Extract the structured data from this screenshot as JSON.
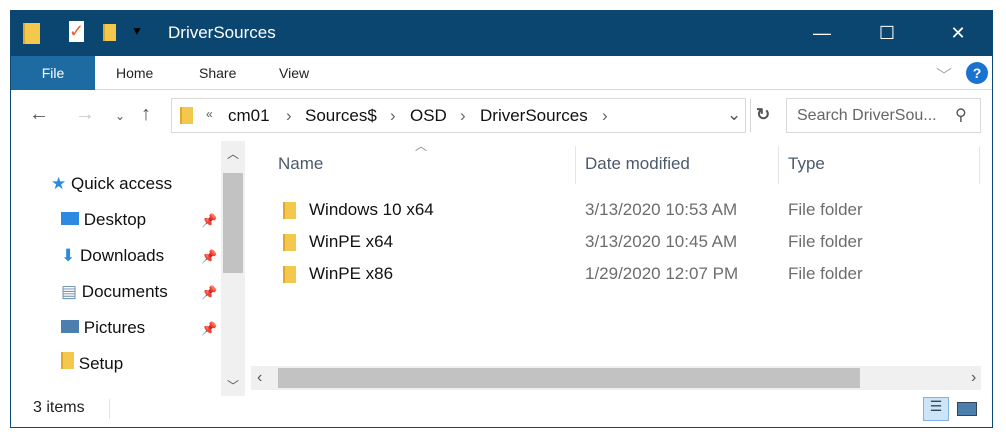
{
  "window": {
    "title": "DriverSources",
    "colors": {
      "titlebar": "#0b4670",
      "file_tab": "#1e6ba1"
    }
  },
  "ribbon": {
    "tabs": [
      "File",
      "Home",
      "Share",
      "View"
    ]
  },
  "address": {
    "overflow": "«",
    "crumbs": [
      "cm01",
      "Sources$",
      "OSD",
      "DriverSources"
    ]
  },
  "search": {
    "placeholder": "Search DriverSou..."
  },
  "sidebar": {
    "items": [
      {
        "label": "Quick access",
        "icon": "star-icon",
        "pinned": false
      },
      {
        "label": "Desktop",
        "icon": "desktop-icon",
        "pinned": true
      },
      {
        "label": "Downloads",
        "icon": "download-icon",
        "pinned": true
      },
      {
        "label": "Documents",
        "icon": "document-icon",
        "pinned": true
      },
      {
        "label": "Pictures",
        "icon": "picture-icon",
        "pinned": true
      },
      {
        "label": "Setup",
        "icon": "folder-icon",
        "pinned": false
      }
    ]
  },
  "columns": [
    "Name",
    "Date modified",
    "Type"
  ],
  "files": [
    {
      "name": "Windows 10 x64",
      "date": "3/13/2020 10:53 AM",
      "type": "File folder"
    },
    {
      "name": "WinPE x64",
      "date": "3/13/2020 10:45 AM",
      "type": "File folder"
    },
    {
      "name": "WinPE x86",
      "date": "1/29/2020 12:07 PM",
      "type": "File folder"
    }
  ],
  "status": {
    "count": "3 items"
  }
}
